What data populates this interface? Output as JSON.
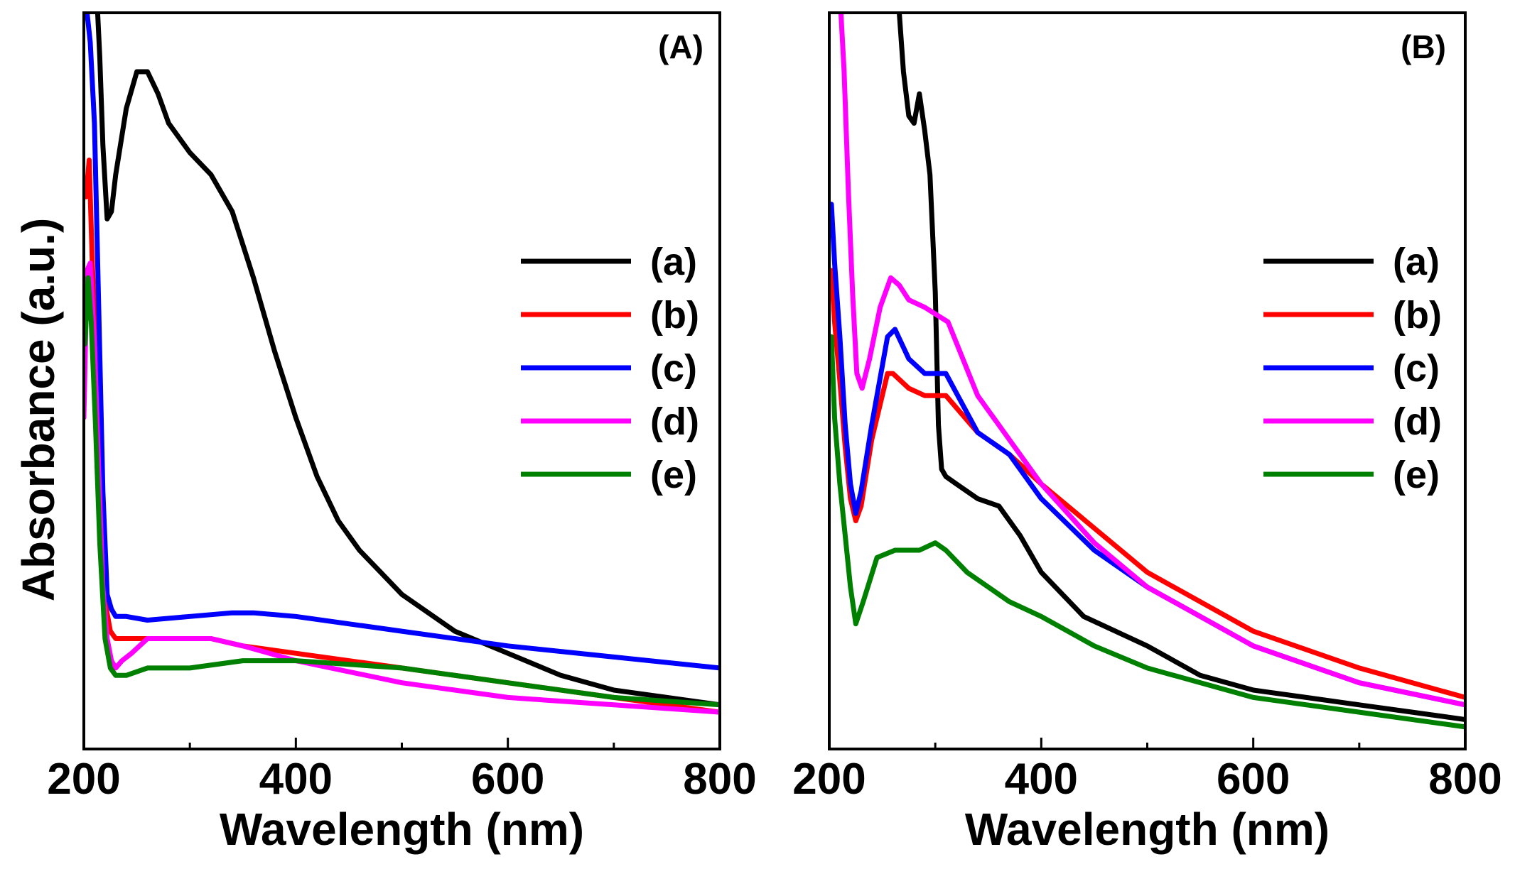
{
  "colors": {
    "a": "#000000",
    "b": "#ff0000",
    "c": "#0000ff",
    "d": "#ff00ff",
    "e": "#008000"
  },
  "ylabel": "Absorbance (a.u.)",
  "chart_data": [
    {
      "type": "line",
      "panel": "(A)",
      "xlabel": "Wavelength (nm)",
      "ylabel": "Absorbance (a.u.)",
      "xlim": [
        200,
        800
      ],
      "ylim": [
        0,
        100
      ],
      "xticks": [
        200,
        400,
        600,
        800
      ],
      "grid": false,
      "legend_position": "right",
      "series": [
        {
          "name": "(a)",
          "key": "a",
          "x": [
            213,
            215,
            218,
            222,
            226,
            230,
            240,
            250,
            260,
            270,
            280,
            300,
            320,
            340,
            360,
            380,
            400,
            420,
            440,
            460,
            480,
            500,
            550,
            600,
            650,
            700,
            750,
            800
          ],
          "y": [
            100,
            94,
            82,
            72,
            73,
            78,
            87,
            92,
            92,
            89,
            85,
            81,
            78,
            73,
            64,
            54,
            45,
            37,
            31,
            27,
            24,
            21,
            16,
            13,
            10,
            8,
            7,
            6
          ]
        },
        {
          "name": "(b)",
          "key": "b",
          "x": [
            202,
            205,
            208,
            212,
            216,
            220,
            225,
            230,
            240,
            260,
            280,
            300,
            320,
            350,
            400,
            450,
            500,
            600,
            700,
            800
          ],
          "y": [
            75,
            80,
            66,
            52,
            34,
            20,
            16,
            15,
            15,
            15,
            15,
            15,
            15,
            14,
            13,
            12,
            11,
            9,
            7,
            5
          ]
        },
        {
          "name": "(c)",
          "key": "c",
          "x": [
            203,
            206,
            210,
            214,
            218,
            222,
            226,
            230,
            240,
            260,
            300,
            340,
            360,
            400,
            500,
            600,
            700,
            800
          ],
          "y": [
            100,
            96,
            85,
            60,
            35,
            21,
            19,
            18,
            18,
            17.5,
            18,
            18.5,
            18.5,
            18,
            16,
            14,
            12.5,
            11
          ]
        },
        {
          "name": "(d)",
          "key": "d",
          "x": [
            200,
            203,
            206,
            210,
            214,
            218,
            222,
            226,
            230,
            236,
            245,
            260,
            300,
            320,
            350,
            400,
            500,
            600,
            700,
            800
          ],
          "y": [
            45,
            65,
            66,
            55,
            38,
            22,
            15,
            12,
            11,
            12,
            13,
            15,
            15,
            15,
            14,
            12,
            9,
            7,
            6,
            5
          ]
        },
        {
          "name": "(e)",
          "key": "e",
          "x": [
            201,
            204,
            207,
            211,
            215,
            220,
            225,
            230,
            240,
            260,
            300,
            350,
            400,
            500,
            600,
            700,
            800
          ],
          "y": [
            55,
            64,
            58,
            44,
            28,
            15,
            11,
            10,
            10,
            11,
            11,
            12,
            12,
            11,
            9,
            7,
            6
          ]
        }
      ]
    },
    {
      "type": "line",
      "panel": "(B)",
      "xlabel": "Wavelength (nm)",
      "ylabel": "Absorbance (a.u.)",
      "xlim": [
        200,
        800
      ],
      "ylim": [
        0,
        100
      ],
      "xticks": [
        200,
        400,
        600,
        800
      ],
      "grid": false,
      "legend_position": "right",
      "series": [
        {
          "name": "(a)",
          "key": "a",
          "x": [
            266,
            270,
            275,
            280,
            285,
            290,
            295,
            300,
            303,
            306,
            310,
            320,
            340,
            360,
            380,
            400,
            440,
            470,
            500,
            550,
            600,
            650,
            700,
            750,
            800
          ],
          "y": [
            100,
            92,
            86,
            85,
            89,
            84,
            78,
            62,
            44,
            38,
            37,
            36,
            34,
            33,
            29,
            24,
            18,
            16,
            14,
            10,
            8,
            7,
            6,
            5,
            4
          ]
        },
        {
          "name": "(b)",
          "key": "b",
          "x": [
            202,
            205,
            210,
            215,
            220,
            225,
            230,
            240,
            255,
            260,
            275,
            290,
            310,
            340,
            370,
            400,
            450,
            500,
            600,
            700,
            800
          ],
          "y": [
            65,
            58,
            50,
            41,
            34,
            31,
            33,
            42,
            51,
            51,
            49,
            48,
            48,
            43,
            40,
            36,
            30,
            24,
            16,
            11,
            7
          ]
        },
        {
          "name": "(c)",
          "key": "c",
          "x": [
            202,
            205,
            210,
            215,
            220,
            225,
            230,
            240,
            255,
            262,
            275,
            290,
            310,
            340,
            370,
            400,
            450,
            500,
            600,
            700,
            800
          ],
          "y": [
            74,
            66,
            56,
            44,
            36,
            32,
            35,
            44,
            56,
            57,
            53,
            51,
            51,
            43,
            40,
            34,
            27,
            22,
            14,
            9,
            6
          ]
        },
        {
          "name": "(d)",
          "key": "d",
          "x": [
            211,
            214,
            218,
            222,
            226,
            231,
            238,
            248,
            258,
            266,
            275,
            290,
            312,
            340,
            370,
            400,
            450,
            500,
            600,
            700,
            800
          ],
          "y": [
            100,
            92,
            76,
            62,
            51,
            49,
            53,
            60,
            64,
            63,
            61,
            60,
            58,
            48,
            42,
            36,
            28,
            22,
            14,
            9,
            6
          ]
        },
        {
          "name": "(e)",
          "key": "e",
          "x": [
            202,
            205,
            210,
            215,
            220,
            225,
            232,
            245,
            262,
            285,
            300,
            310,
            330,
            370,
            400,
            450,
            500,
            600,
            700,
            800
          ],
          "y": [
            56,
            45,
            36,
            29,
            22,
            17,
            20,
            26,
            27,
            27,
            28,
            27,
            24,
            20,
            18,
            14,
            11,
            7,
            5,
            3
          ]
        }
      ]
    }
  ]
}
